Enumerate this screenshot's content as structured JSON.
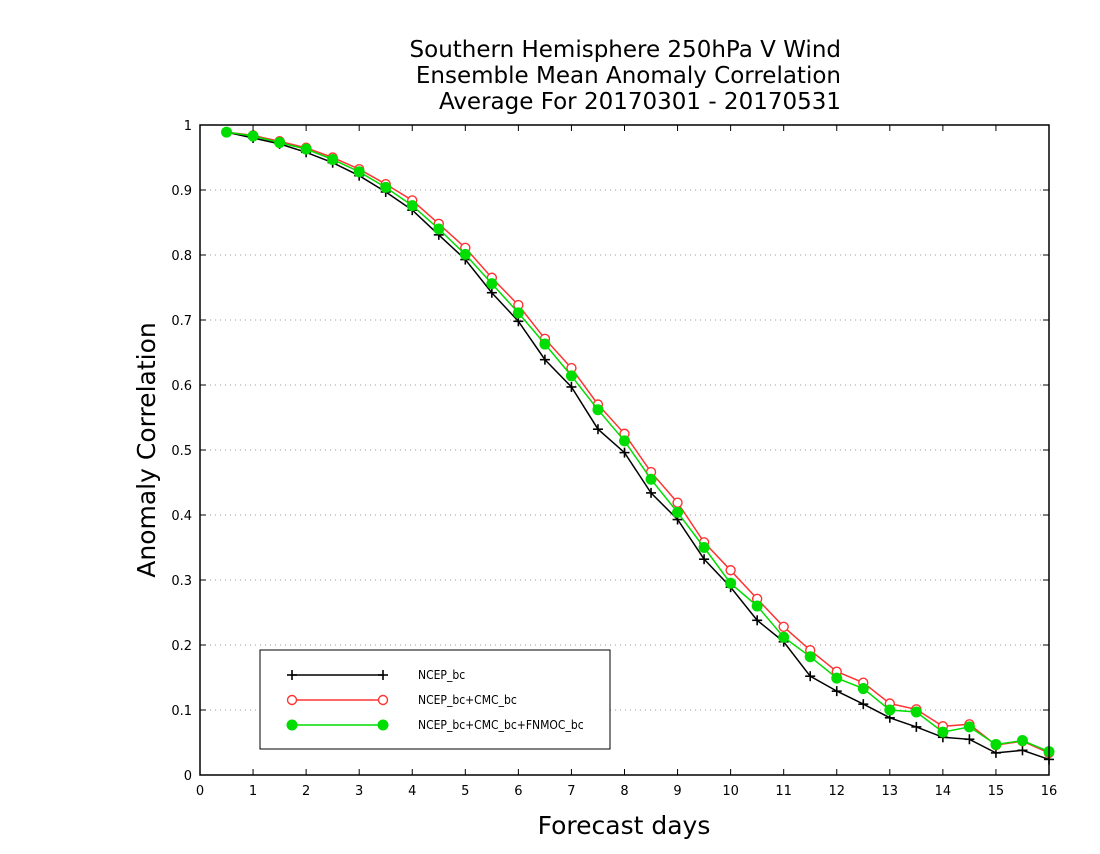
{
  "chart_data": {
    "type": "line",
    "title_lines": [
      "Southern Hemisphere 250hPa V Wind",
      "Ensemble Mean Anomaly Correlation",
      "Average For 20170301 - 20170531"
    ],
    "xlabel": "Forecast days",
    "ylabel": "Anomaly Correlation",
    "xlim": [
      0,
      16
    ],
    "ylim": [
      0,
      1
    ],
    "x_ticks": [
      "0",
      "1",
      "2",
      "3",
      "4",
      "5",
      "6",
      "7",
      "8",
      "9",
      "10",
      "11",
      "12",
      "13",
      "14",
      "15",
      "16"
    ],
    "y_ticks": [
      "0",
      "0.1",
      "0.2",
      "0.3",
      "0.4",
      "0.5",
      "0.6",
      "0.7",
      "0.8",
      "0.9",
      "1"
    ],
    "grid": "horizontal dotted",
    "legend_position": "lower-left",
    "x": [
      0.5,
      1,
      1.5,
      2,
      2.5,
      3,
      3.5,
      4,
      4.5,
      5,
      5.5,
      6,
      6.5,
      7,
      7.5,
      8,
      8.5,
      9,
      9.5,
      10,
      10.5,
      11,
      11.5,
      12,
      12.5,
      13,
      13.5,
      14,
      14.5,
      15,
      15.5,
      16
    ],
    "series": [
      {
        "name": "NCEP_bc",
        "color": "#000000",
        "marker": "plus",
        "values": [
          0.989,
          0.98,
          0.971,
          0.958,
          0.942,
          0.922,
          0.897,
          0.869,
          0.831,
          0.793,
          0.742,
          0.698,
          0.639,
          0.597,
          0.532,
          0.496,
          0.434,
          0.393,
          0.332,
          0.289,
          0.238,
          0.205,
          0.152,
          0.129,
          0.109,
          0.088,
          0.074,
          0.058,
          0.055,
          0.034,
          0.038,
          0.024
        ]
      },
      {
        "name": "NCEP_bc+CMC_bc",
        "color": "#ff3333",
        "marker": "open-circle",
        "values": [
          0.989,
          0.984,
          0.975,
          0.965,
          0.95,
          0.932,
          0.909,
          0.884,
          0.848,
          0.811,
          0.765,
          0.723,
          0.671,
          0.626,
          0.57,
          0.525,
          0.466,
          0.419,
          0.358,
          0.315,
          0.271,
          0.228,
          0.192,
          0.159,
          0.142,
          0.11,
          0.101,
          0.075,
          0.078,
          0.046,
          0.052,
          0.034
        ]
      },
      {
        "name": "NCEP_bc+CMC_bc+FNMOC_bc",
        "color": "#00dd00",
        "marker": "filled-circle",
        "values": [
          0.989,
          0.983,
          0.973,
          0.963,
          0.947,
          0.928,
          0.904,
          0.876,
          0.84,
          0.801,
          0.756,
          0.711,
          0.663,
          0.614,
          0.562,
          0.514,
          0.455,
          0.404,
          0.35,
          0.295,
          0.26,
          0.212,
          0.182,
          0.149,
          0.133,
          0.1,
          0.097,
          0.066,
          0.074,
          0.047,
          0.053,
          0.036
        ]
      }
    ]
  }
}
